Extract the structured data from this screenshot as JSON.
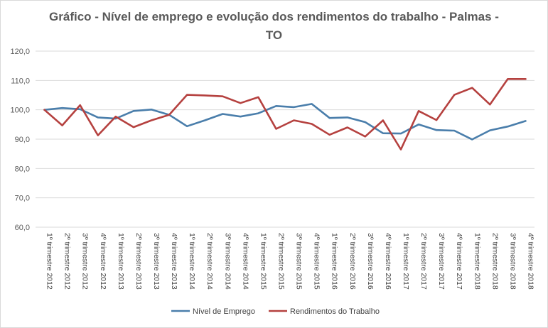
{
  "chart_data": {
    "type": "line",
    "title_line1": "Gráfico - Nível de emprego e evolução dos rendimentos do trabalho - Palmas -",
    "title_line2": "TO",
    "xlabel": "",
    "ylabel": "",
    "ylim": [
      60,
      120
    ],
    "yticks": [
      "60,0",
      "70,0",
      "80,0",
      "90,0",
      "100,0",
      "110,0",
      "120,0"
    ],
    "ytick_values": [
      60,
      70,
      80,
      90,
      100,
      110,
      120
    ],
    "grid": true,
    "legend_position": "bottom",
    "categories": [
      "1º trimestre 2012",
      "2º trimestre 2012",
      "3º trimestre 2012",
      "4º trimestre 2012",
      "1º trimestre 2013",
      "2º trimestre 2013",
      "3º trimestre 2013",
      "4º trimestre 2013",
      "1º trimestre 2014",
      "2º trimestre 2014",
      "3º trimestre 2014",
      "4º trimestre 2014",
      "1º trimestre 2015",
      "2º trimestre 2015",
      "3º trimestre 2015",
      "4º trimestre 2015",
      "1º trimestre 2016",
      "2º trimestre 2016",
      "3º trimestre 2016",
      "4º trimestre 2016",
      "1º trimestre 2017",
      "2º trimestre 2017",
      "3º trimestre 2017",
      "4º trimestre 2017",
      "1º trimestre 2018",
      "2º trimestre 2018",
      "3º trimestre 2018",
      "4º trimestre 2018"
    ],
    "series": [
      {
        "name": "Nível de Emprego",
        "color": "#4a7eab",
        "values": [
          100.0,
          100.6,
          100.2,
          97.4,
          97.0,
          99.6,
          100.1,
          98.3,
          94.4,
          96.4,
          98.6,
          97.7,
          98.8,
          101.3,
          100.9,
          102.0,
          97.2,
          97.4,
          95.8,
          92.0,
          91.9,
          95.0,
          93.1,
          92.9,
          89.9,
          93.0,
          94.3,
          96.2
        ]
      },
      {
        "name": "Rendimentos do Trabalho",
        "color": "#b5413f",
        "values": [
          100.0,
          94.7,
          101.6,
          91.3,
          97.7,
          94.1,
          96.4,
          98.3,
          105.1,
          104.9,
          104.6,
          102.3,
          104.3,
          93.5,
          96.4,
          95.2,
          91.5,
          94.0,
          90.9,
          96.4,
          86.5,
          99.6,
          96.5,
          105.1,
          107.5,
          101.8,
          110.5,
          110.5
        ]
      }
    ]
  }
}
